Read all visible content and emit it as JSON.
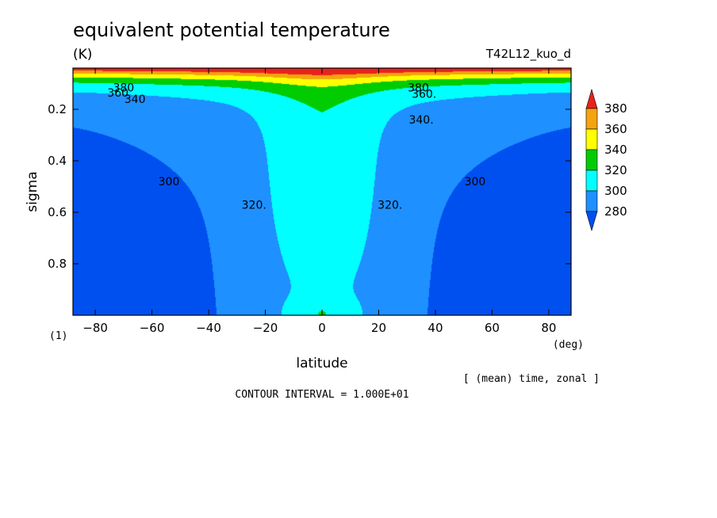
{
  "chart_data": {
    "type": "contour",
    "title": "equivalent potential temperature",
    "units": "(K)",
    "run_id": "T42L12_kuo_d",
    "xlabel": "latitude",
    "xunit": "(deg)",
    "ylabel": "sigma",
    "yunit": "(1)",
    "xlim": [
      -87.86,
      87.86
    ],
    "ylim": [
      1.0,
      0.04
    ],
    "x_ticks": [
      -80,
      -60,
      -40,
      -20,
      0,
      20,
      40,
      60,
      80
    ],
    "y_ticks": [
      0.2,
      0.4,
      0.6,
      0.8
    ],
    "x_tick_labels": [
      "−80",
      "−60",
      "−40",
      "−20",
      "0",
      "20",
      "40",
      "60",
      "80"
    ],
    "y_tick_labels": [
      "0.2",
      "0.4",
      "0.6",
      "0.8"
    ],
    "averaging_note": "[ (mean) time, zonal ]",
    "contour_interval_text": "CONTOUR INTERVAL = 1.000E+01",
    "legend": {
      "levels": [
        "380",
        "360",
        "340",
        "320",
        "300",
        "280"
      ],
      "colors": [
        "#e8231e",
        "#f5a30f",
        "#ffff00",
        "#00cc00",
        "#00ffff",
        "#1e90ff",
        "#0050f0"
      ]
    },
    "contour_labels": [
      {
        "text": "380",
        "lat": -70,
        "sigma": 0.115
      },
      {
        "text": "360",
        "lat": -72,
        "sigma": 0.135
      },
      {
        "text": "340",
        "lat": -66,
        "sigma": 0.16
      },
      {
        "text": "380",
        "lat": 34,
        "sigma": 0.115
      },
      {
        "text": "360.",
        "lat": 36,
        "sigma": 0.14
      },
      {
        "text": "340.",
        "lat": 35,
        "sigma": 0.24
      },
      {
        "text": "300",
        "lat": -54,
        "sigma": 0.48
      },
      {
        "text": "320.",
        "lat": -24,
        "sigma": 0.57
      },
      {
        "text": "320.",
        "lat": 24,
        "sigma": 0.57
      },
      {
        "text": "300",
        "lat": 54,
        "sigma": 0.48
      }
    ]
  }
}
